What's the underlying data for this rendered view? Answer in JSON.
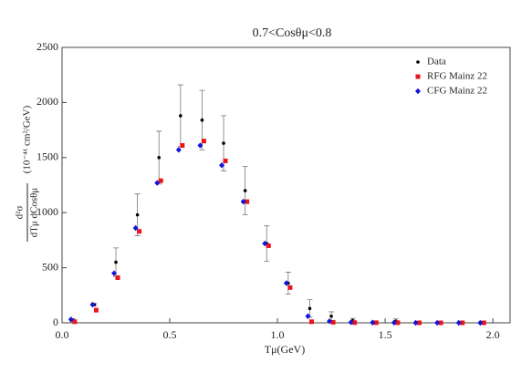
{
  "chart_data": {
    "type": "scatter",
    "title": "0.7<Cosθμ<0.8",
    "x_label": "Tμ(GeV)",
    "y_label_numerator": "d²σ",
    "y_label_denominator": "dTμ dCosθμ",
    "y_label_units": "(10⁻⁴¹ cm²/GeV)",
    "x": [
      0.05,
      0.15,
      0.25,
      0.35,
      0.45,
      0.55,
      0.65,
      0.75,
      0.85,
      0.95,
      1.05,
      1.15,
      1.25,
      1.35,
      1.45,
      1.55,
      1.65,
      1.75,
      1.85,
      1.95
    ],
    "series": [
      {
        "name": "Data",
        "color": "#000000",
        "marker": "circle",
        "values": [
          25,
          165,
          550,
          980,
          1500,
          1880,
          1840,
          1630,
          1200,
          720,
          360,
          130,
          60,
          20,
          5,
          15,
          2,
          2,
          2,
          2
        ],
        "errors": [
          10,
          10,
          130,
          190,
          240,
          280,
          270,
          250,
          220,
          160,
          100,
          80,
          40,
          20,
          5,
          20,
          2,
          2,
          2,
          2
        ]
      },
      {
        "name": "RFG Mainz 22",
        "color": "#e8141c",
        "marker": "square",
        "values": [
          10,
          115,
          410,
          830,
          1290,
          1610,
          1650,
          1470,
          1100,
          700,
          320,
          10,
          5,
          2,
          1,
          1,
          0,
          0,
          0,
          0
        ]
      },
      {
        "name": "CFG Mainz 22",
        "color": "#1414d8",
        "marker": "diamond",
        "values": [
          30,
          165,
          450,
          860,
          1270,
          1570,
          1610,
          1430,
          1100,
          720,
          360,
          60,
          15,
          5,
          2,
          2,
          0,
          0,
          0,
          0
        ]
      }
    ],
    "xlim": [
      0,
      2.08
    ],
    "ylim": [
      0,
      2500
    ],
    "xticks": [
      {
        "value": 0,
        "label": "0.0"
      },
      0.5,
      {
        "value": 1,
        "label": "1.0"
      },
      1.5,
      {
        "value": 2,
        "label": "2.0"
      }
    ],
    "yticks": [
      0,
      500,
      1000,
      1500,
      2000,
      2500
    ],
    "legend": "top-right"
  }
}
